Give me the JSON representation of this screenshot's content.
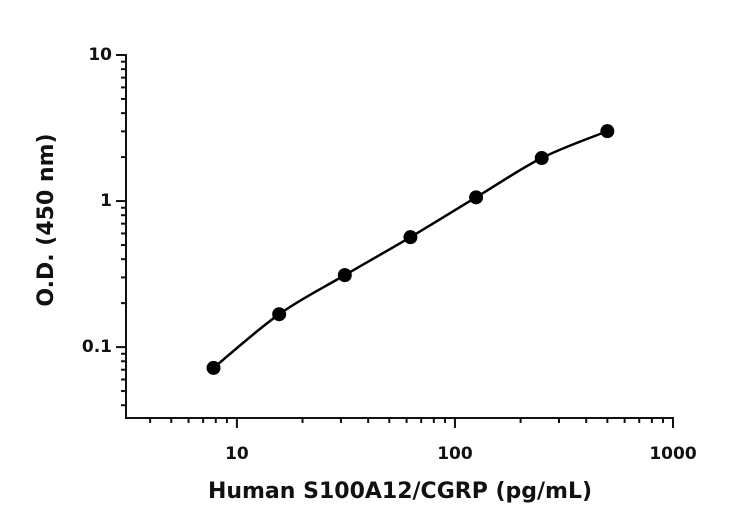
{
  "chart_data": {
    "type": "scatter",
    "log_x": true,
    "log_y": true,
    "grid": false,
    "x_label": "Human S100A12/CGRP (pg/mL)",
    "y_label": "O.D. (450 nm)",
    "x": [
      7.8125,
      15.625,
      31.25,
      62.5,
      125,
      250,
      500
    ],
    "series": [
      {
        "color": "#000000",
        "values": [
          0.072,
          0.168,
          0.311,
          0.566,
          1.06,
          1.97,
          3.01
        ]
      }
    ],
    "xlim": [
      3.1,
      1000
    ],
    "ylim": [
      0.0327,
      10
    ],
    "xticks": [
      10,
      100,
      1000
    ],
    "yticks": [
      0.1,
      1,
      10
    ],
    "xminorticks": [
      4,
      5,
      6,
      7,
      8,
      9,
      20,
      30,
      40,
      50,
      60,
      70,
      80,
      90,
      200,
      300,
      400,
      500,
      600,
      700,
      800,
      900
    ],
    "yminorticks": [
      0.04,
      0.05,
      0.06,
      0.07,
      0.08,
      0.09,
      0.2,
      0.3,
      0.4,
      0.5,
      0.6,
      0.7,
      0.8,
      0.9,
      2,
      3,
      4,
      5,
      6,
      7,
      8,
      9
    ]
  }
}
